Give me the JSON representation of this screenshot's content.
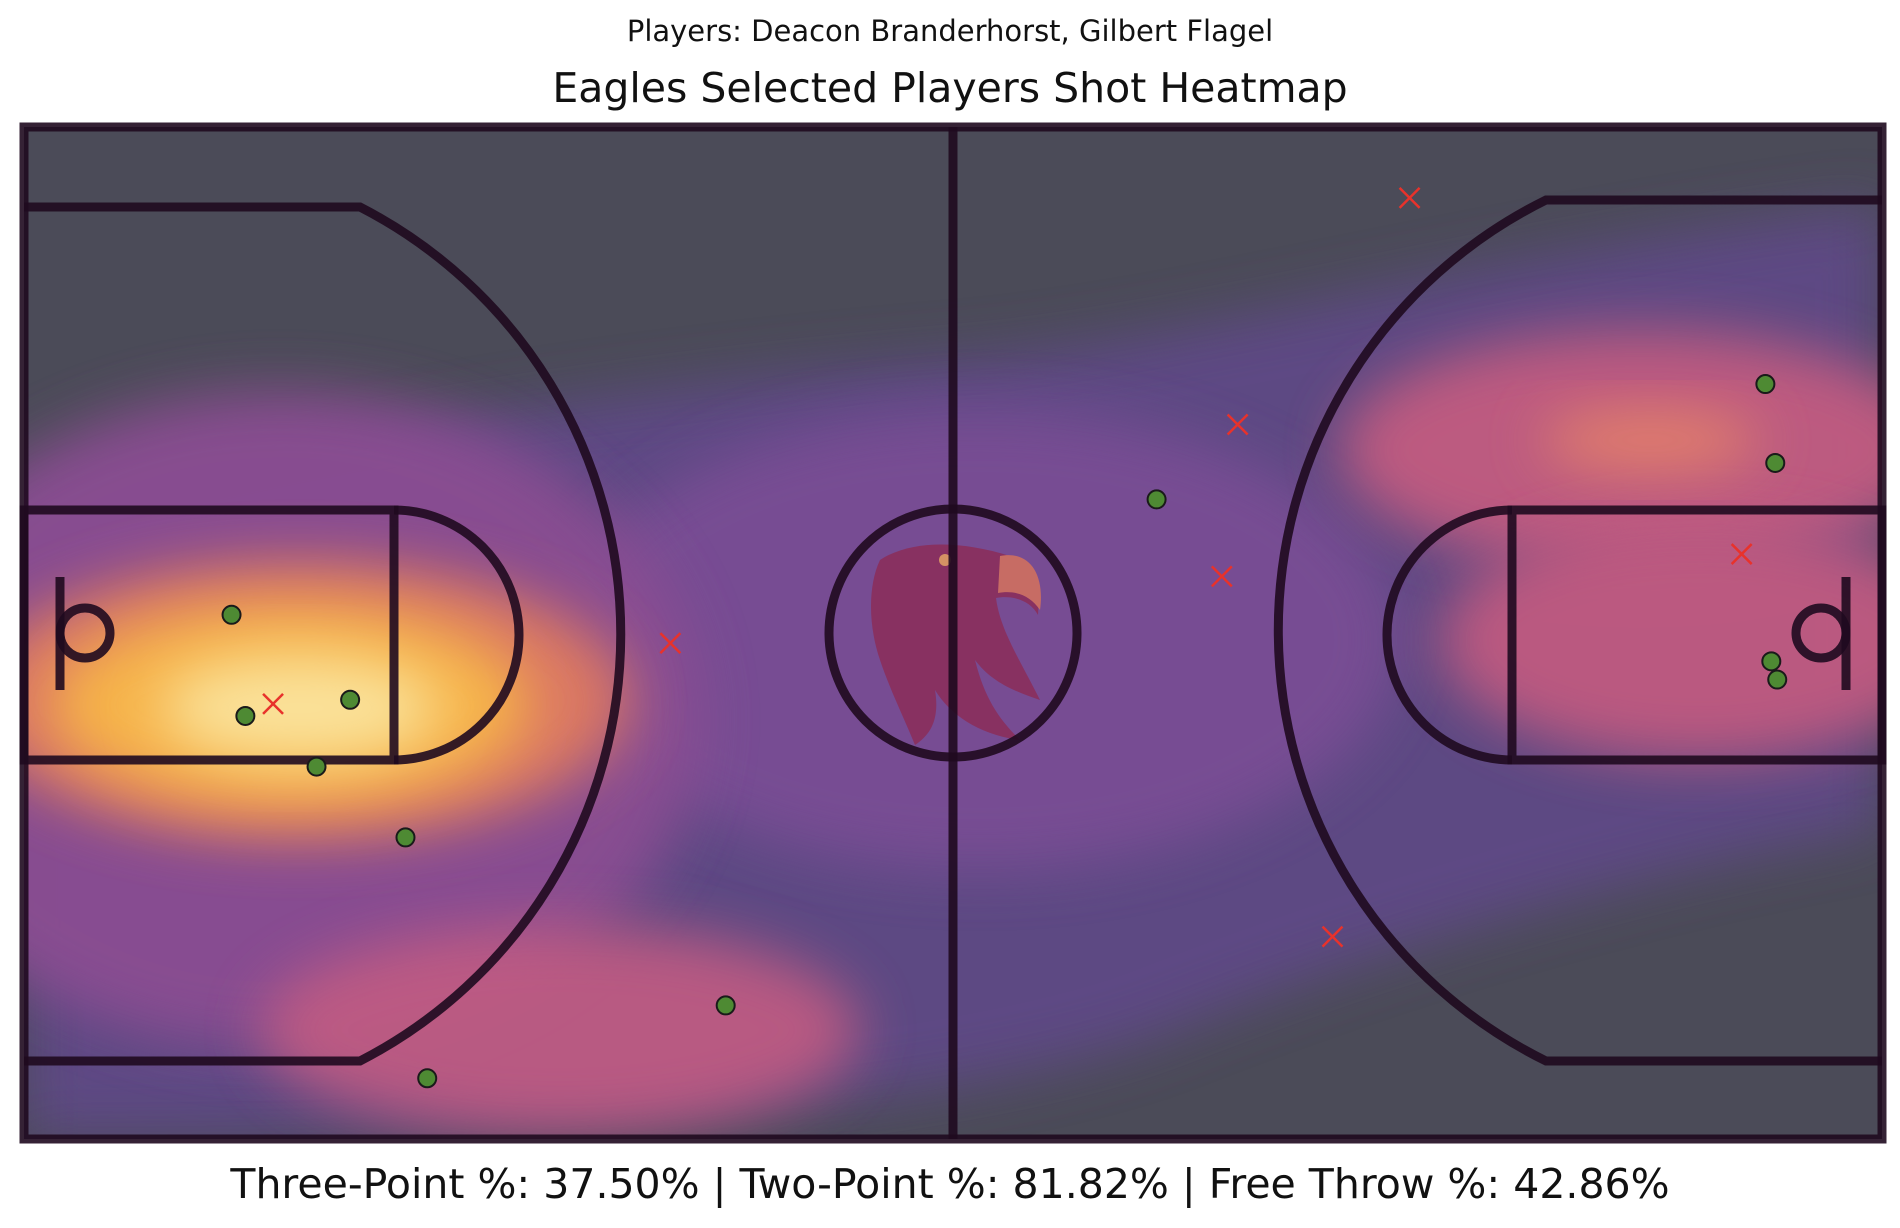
{
  "header": {
    "subtitle": "Players: Deacon Branderhorst, Gilbert Flagel",
    "title": "Eagles Selected Players Shot Heatmap"
  },
  "footer": {
    "stats": "Three-Point %: 37.50% | Two-Point %: 81.82% | Free Throw %: 42.86%"
  },
  "colors": {
    "court_background": "#4b4b58",
    "court_lines": "#1f0a1f",
    "made_marker": "#4e8a33",
    "missed_marker": "#e8322b",
    "colormap": "inferno"
  },
  "chart_data": {
    "type": "heatmap",
    "title": "Eagles Selected Players Shot Heatmap",
    "subtitle": "Players: Deacon Branderhorst, Gilbert Flagel",
    "xlim": [
      0,
      94
    ],
    "ylim": [
      0,
      50
    ],
    "grid": false,
    "series": [
      {
        "name": "made",
        "marker": "circle",
        "points": [
          {
            "x": 10.5,
            "y": 25.9
          },
          {
            "x": 11.2,
            "y": 20.9
          },
          {
            "x": 16.5,
            "y": 21.7
          },
          {
            "x": 14.8,
            "y": 18.4
          },
          {
            "x": 19.3,
            "y": 14.9
          },
          {
            "x": 35.5,
            "y": 6.6
          },
          {
            "x": 20.4,
            "y": 3.0
          },
          {
            "x": 57.3,
            "y": 31.6
          },
          {
            "x": 88.1,
            "y": 37.3
          },
          {
            "x": 88.6,
            "y": 33.4
          },
          {
            "x": 88.4,
            "y": 23.6
          },
          {
            "x": 88.7,
            "y": 22.7
          }
        ]
      },
      {
        "name": "missed",
        "marker": "x",
        "points": [
          {
            "x": 12.6,
            "y": 21.5
          },
          {
            "x": 32.7,
            "y": 24.5
          },
          {
            "x": 61.4,
            "y": 35.3
          },
          {
            "x": 60.6,
            "y": 27.8
          },
          {
            "x": 70.1,
            "y": 46.5
          },
          {
            "x": 86.9,
            "y": 28.9
          },
          {
            "x": 66.2,
            "y": 10.0
          }
        ]
      }
    ]
  }
}
